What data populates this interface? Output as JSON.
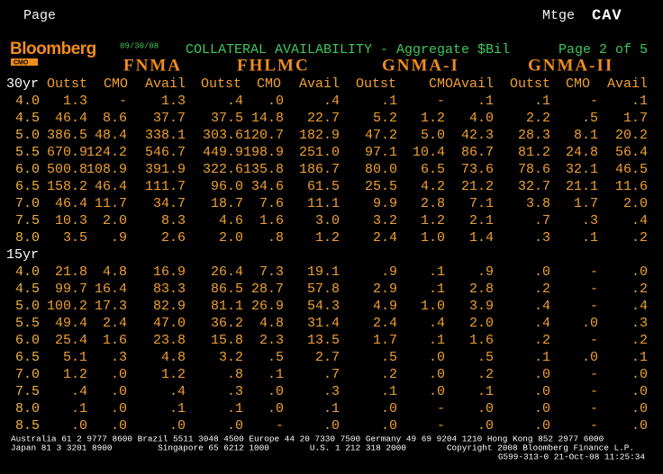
{
  "header": {
    "page": "Page",
    "function": "Mtge",
    "code": "CAV",
    "logo": "Bloomberg",
    "logo_sub": "CMO",
    "date": "09/30/08",
    "title": "COLLATERAL AVAILABILITY - Aggregate $Bil",
    "page_of": "Page 2 of 5"
  },
  "table": {
    "groups": [
      "FNMA",
      "FHLMC",
      "GNMA-I",
      "GNMA-II"
    ],
    "columns": [
      "Outst",
      "CMO",
      "Avail"
    ],
    "sections": [
      {
        "label": "30yr",
        "rows": [
          {
            "coupon": "4.0",
            "cells": [
              [
                "1.3",
                "-",
                "1.3"
              ],
              [
                ".4",
                ".0",
                ".4"
              ],
              [
                ".1",
                "-",
                ".1"
              ],
              [
                ".1",
                "-",
                ".1"
              ]
            ]
          },
          {
            "coupon": "4.5",
            "cells": [
              [
                "46.4",
                "8.6",
                "37.7"
              ],
              [
                "37.5",
                "14.8",
                "22.7"
              ],
              [
                "5.2",
                "1.2",
                "4.0"
              ],
              [
                "2.2",
                ".5",
                "1.7"
              ]
            ]
          },
          {
            "coupon": "5.0",
            "cells": [
              [
                "386.5",
                "48.4",
                "338.1"
              ],
              [
                "303.6",
                "120.7",
                "182.9"
              ],
              [
                "47.2",
                "5.0",
                "42.3"
              ],
              [
                "28.3",
                "8.1",
                "20.2"
              ]
            ]
          },
          {
            "coupon": "5.5",
            "cells": [
              [
                "670.9",
                "124.2",
                "546.7"
              ],
              [
                "449.9",
                "198.9",
                "251.0"
              ],
              [
                "97.1",
                "10.4",
                "86.7"
              ],
              [
                "81.2",
                "24.8",
                "56.4"
              ]
            ]
          },
          {
            "coupon": "6.0",
            "cells": [
              [
                "500.8",
                "108.9",
                "391.9"
              ],
              [
                "322.6",
                "135.8",
                "186.7"
              ],
              [
                "80.0",
                "6.5",
                "73.6"
              ],
              [
                "78.6",
                "32.1",
                "46.5"
              ]
            ]
          },
          {
            "coupon": "6.5",
            "cells": [
              [
                "158.2",
                "46.4",
                "111.7"
              ],
              [
                "96.0",
                "34.6",
                "61.5"
              ],
              [
                "25.5",
                "4.2",
                "21.2"
              ],
              [
                "32.7",
                "21.1",
                "11.6"
              ]
            ]
          },
          {
            "coupon": "7.0",
            "cells": [
              [
                "46.4",
                "11.7",
                "34.7"
              ],
              [
                "18.7",
                "7.6",
                "11.1"
              ],
              [
                "9.9",
                "2.8",
                "7.1"
              ],
              [
                "3.8",
                "1.7",
                "2.0"
              ]
            ]
          },
          {
            "coupon": "7.5",
            "cells": [
              [
                "10.3",
                "2.0",
                "8.3"
              ],
              [
                "4.6",
                "1.6",
                "3.0"
              ],
              [
                "3.2",
                "1.2",
                "2.1"
              ],
              [
                ".7",
                ".3",
                ".4"
              ]
            ]
          },
          {
            "coupon": "8.0",
            "cells": [
              [
                "3.5",
                ".9",
                "2.6"
              ],
              [
                "2.0",
                ".8",
                "1.2"
              ],
              [
                "2.4",
                "1.0",
                "1.4"
              ],
              [
                ".3",
                ".1",
                ".2"
              ]
            ]
          }
        ]
      },
      {
        "label": "15yr",
        "rows": [
          {
            "coupon": "4.0",
            "cells": [
              [
                "21.8",
                "4.8",
                "16.9"
              ],
              [
                "26.4",
                "7.3",
                "19.1"
              ],
              [
                ".9",
                ".1",
                ".9"
              ],
              [
                ".0",
                "-",
                ".0"
              ]
            ]
          },
          {
            "coupon": "4.5",
            "cells": [
              [
                "99.7",
                "16.4",
                "83.3"
              ],
              [
                "86.5",
                "28.7",
                "57.8"
              ],
              [
                "2.9",
                ".1",
                "2.8"
              ],
              [
                ".2",
                "-",
                ".2"
              ]
            ]
          },
          {
            "coupon": "5.0",
            "cells": [
              [
                "100.2",
                "17.3",
                "82.9"
              ],
              [
                "81.1",
                "26.9",
                "54.3"
              ],
              [
                "4.9",
                "1.0",
                "3.9"
              ],
              [
                ".4",
                "-",
                ".4"
              ]
            ]
          },
          {
            "coupon": "5.5",
            "cells": [
              [
                "49.4",
                "2.4",
                "47.0"
              ],
              [
                "36.2",
                "4.8",
                "31.4"
              ],
              [
                "2.4",
                ".4",
                "2.0"
              ],
              [
                ".4",
                ".0",
                ".3"
              ]
            ]
          },
          {
            "coupon": "6.0",
            "cells": [
              [
                "25.4",
                "1.6",
                "23.8"
              ],
              [
                "15.8",
                "2.3",
                "13.5"
              ],
              [
                "1.7",
                ".1",
                "1.6"
              ],
              [
                ".2",
                "-",
                ".2"
              ]
            ]
          },
          {
            "coupon": "6.5",
            "cells": [
              [
                "5.1",
                ".3",
                "4.8"
              ],
              [
                "3.2",
                ".5",
                "2.7"
              ],
              [
                ".5",
                ".0",
                ".5"
              ],
              [
                ".1",
                ".0",
                ".1"
              ]
            ]
          },
          {
            "coupon": "7.0",
            "cells": [
              [
                "1.2",
                ".0",
                "1.2"
              ],
              [
                ".8",
                ".1",
                ".7"
              ],
              [
                ".2",
                ".0",
                ".2"
              ],
              [
                ".0",
                "-",
                ".0"
              ]
            ]
          },
          {
            "coupon": "7.5",
            "cells": [
              [
                ".4",
                ".0",
                ".4"
              ],
              [
                ".3",
                ".0",
                ".3"
              ],
              [
                ".1",
                ".0",
                ".1"
              ],
              [
                ".0",
                "-",
                ".0"
              ]
            ]
          },
          {
            "coupon": "8.0",
            "cells": [
              [
                ".1",
                ".0",
                ".1"
              ],
              [
                ".1",
                ".0",
                ".1"
              ],
              [
                ".0",
                "-",
                ".0"
              ],
              [
                ".0",
                "-",
                ".0"
              ]
            ]
          },
          {
            "coupon": "8.5",
            "cells": [
              [
                ".0",
                ".0",
                ".0"
              ],
              [
                ".0",
                "-",
                ".0"
              ],
              [
                ".0",
                "-",
                ".0"
              ],
              [
                ".0",
                "-",
                ".0"
              ]
            ]
          }
        ]
      }
    ]
  },
  "footer": [
    "Australia 61 2 9777 8600 Brazil 5511 3048 4500 Europe 44 20 7330 7500 Germany 49 69 9204 1210 Hong Kong 852 2977 6000",
    "Japan 81 3 3201 8900         Singapore 65 6212 1000        U.S. 1 212 318 2000        Copyright 2008 Bloomberg Finance L.P.",
    "G599-313-0 21-Oct-08 11:25:34"
  ]
}
